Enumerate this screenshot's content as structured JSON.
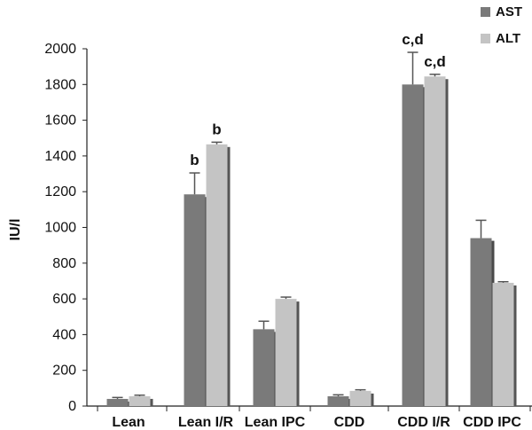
{
  "chart_data": {
    "type": "bar",
    "title": "",
    "xlabel": "",
    "ylabel": "IU/l",
    "ylim": [
      0,
      2000
    ],
    "yticks": [
      "0",
      "200",
      "400",
      "600",
      "800",
      "1000",
      "1200",
      "1400",
      "1600",
      "1800",
      "2000"
    ],
    "categories": [
      "Lean",
      "Lean I/R",
      "Lean IPC",
      "CDD",
      "CDD I/R",
      "CDD IPC"
    ],
    "series": [
      {
        "name": "AST",
        "color": "#7a7a7a",
        "values": [
          40,
          1185,
          430,
          55,
          1800,
          940
        ],
        "errors": [
          8,
          120,
          45,
          8,
          180,
          100
        ],
        "annotations": [
          "",
          "b",
          "",
          "",
          "c,d",
          ""
        ]
      },
      {
        "name": "ALT",
        "color": "#c4c4c4",
        "values": [
          55,
          1465,
          600,
          85,
          1845,
          690
        ],
        "errors": [
          6,
          12,
          10,
          6,
          12,
          6
        ],
        "annotations": [
          "",
          "b",
          "",
          "",
          "c,d",
          ""
        ]
      }
    ],
    "legend_position": "top-right",
    "grid": false
  }
}
